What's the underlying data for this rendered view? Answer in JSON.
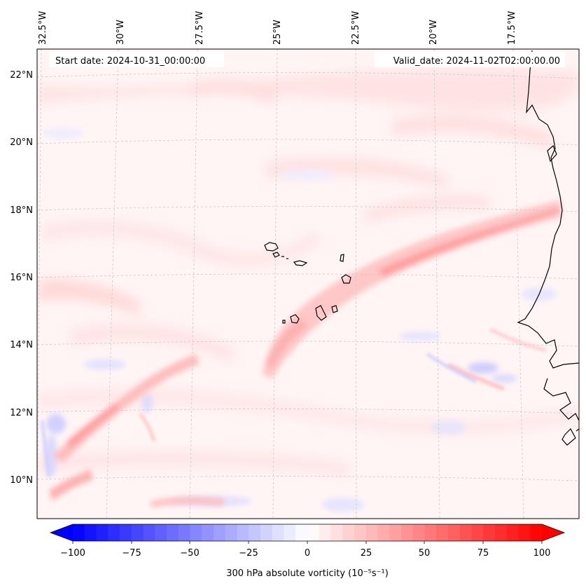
{
  "map": {
    "start_date": "Start date: 2024-10-31_00:00:00",
    "valid_date": "Valid_date: 2024-11-02T02:00:00.00",
    "lon_labels": [
      "32.5°W",
      "30°W",
      "27.5°W",
      "25°W",
      "22.5°W",
      "20°W",
      "17.5°W"
    ],
    "lat_labels": [
      "22°N",
      "20°N",
      "18°N",
      "16°N",
      "14°N",
      "12°N",
      "10°N"
    ],
    "region": "Cape Verde Islands and West African coast",
    "variable": "300 hPa absolute vorticity"
  },
  "colorbar": {
    "label": "300 hPa absolute vorticity (10⁻⁵s⁻¹)",
    "ticks": [
      "−100",
      "−75",
      "−50",
      "−25",
      "0",
      "25",
      "50",
      "75",
      "100"
    ],
    "min": -100,
    "max": 100,
    "step": 5,
    "colormap": "bwr",
    "low_color": "#0000ff",
    "mid_color": "#ffffff",
    "high_color": "#ff0000"
  },
  "colors": {
    "axis": "#000000",
    "grid": "#b0b0b0",
    "coastline": "#000000"
  }
}
